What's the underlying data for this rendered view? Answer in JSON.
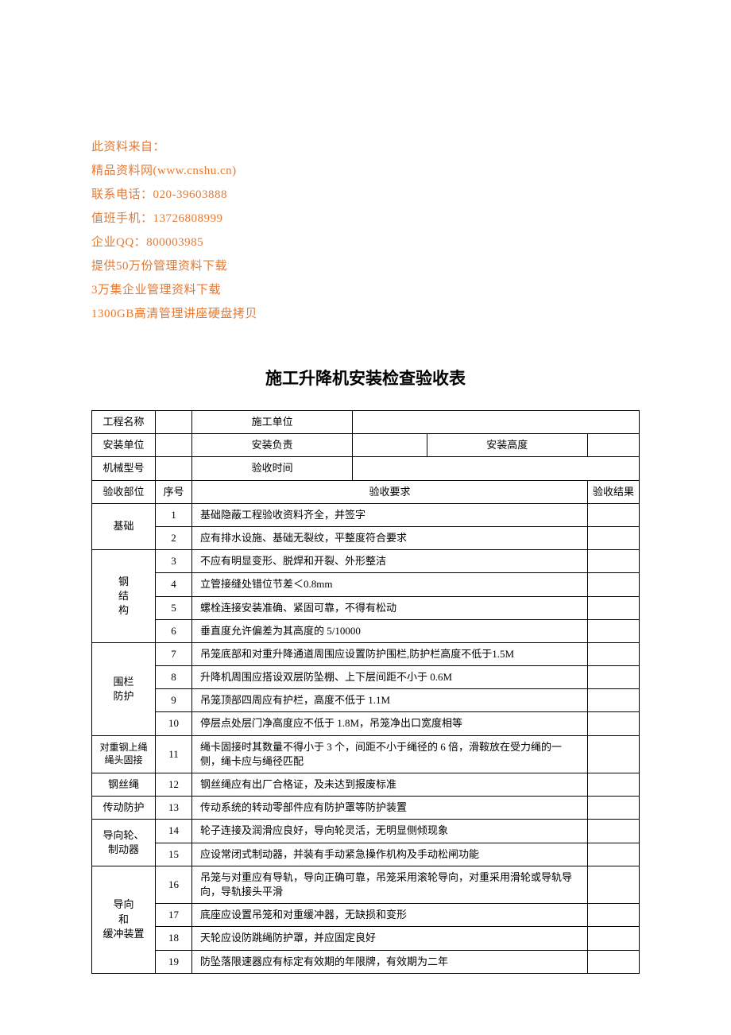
{
  "source_color": "#e47933",
  "source_lines": [
    "此资料来自：",
    "精品资料网(www.cnshu.cn)",
    "联系电话：020-39603888",
    "值班手机：13726808999",
    "企业QQ：800003985",
    "提供50万份管理资料下载",
    "3万集企业管理资料下载",
    "1300GB高清管理讲座硬盘拷贝"
  ],
  "title": "施工升降机安装检查验收表",
  "meta_labels": {
    "project_name": "工程名称",
    "construction_unit": "施工单位",
    "install_unit": "安装单位",
    "install_responsible": "安装负责",
    "install_height": "安装高度",
    "machine_model": "机械型号",
    "accept_time": "验收时间"
  },
  "header": {
    "accept_section": "验收部位",
    "seq_no": "序号",
    "requirements": "验收要求",
    "result": "验收结果"
  },
  "sections": [
    {
      "name": "基础",
      "rows": [
        {
          "no": "1",
          "req": "基础隐蔽工程验收资料齐全，并签字"
        },
        {
          "no": "2",
          "req": "应有排水设施、基础无裂纹，平整度符合要求"
        }
      ]
    },
    {
      "name": "钢\n结\n构",
      "rows": [
        {
          "no": "3",
          "req": "不应有明显变形、脱焊和开裂、外形整洁"
        },
        {
          "no": "4",
          "req": "立管接缝处错位节差＜0.8mm"
        },
        {
          "no": "5",
          "req": "螺栓连接安装准确、紧固可靠，不得有松动"
        },
        {
          "no": "6",
          "req": "垂直度允许偏差为其高度的 5/10000"
        }
      ]
    },
    {
      "name": "围栏\n防护",
      "rows": [
        {
          "no": "7",
          "req": "吊笼底部和对重升降通道周围应设置防护围栏,防护栏高度不低于1.5M"
        },
        {
          "no": "8",
          "req": "升降机周围应搭设双层防坠棚、上下层间距不小于 0.6M"
        },
        {
          "no": "9",
          "req": "吊笼顶部四周应有护栏，高度不低于 1.1M"
        },
        {
          "no": "10",
          "req": "停层点处层门净高度应不低于 1.8M，吊笼净出口宽度相等"
        }
      ]
    },
    {
      "name": "对重钢上绳\n绳头固接",
      "rows": [
        {
          "no": "11",
          "req": "绳卡固接时其数量不得小于 3 个，间距不小于绳径的 6 倍，滑鞍放在受力绳的一侧，绳卡应与绳径匹配"
        }
      ]
    },
    {
      "name": "钢丝绳",
      "rows": [
        {
          "no": "12",
          "req": "钢丝绳应有出厂合格证，及未达到报废标准"
        }
      ]
    },
    {
      "name": "传动防护",
      "rows": [
        {
          "no": "13",
          "req": "传动系统的转动零部件应有防护罩等防护装置"
        }
      ]
    },
    {
      "name": "导向轮、\n制动器",
      "rows": [
        {
          "no": "14",
          "req": "轮子连接及润滑应良好，导向轮灵活，无明显侧倾现象"
        },
        {
          "no": "15",
          "req": "应设常闭式制动器，并装有手动紧急操作机构及手动松闸功能"
        }
      ]
    },
    {
      "name": "导向\n和\n缓冲装置",
      "rows": [
        {
          "no": "16",
          "req": "吊笼与对重应有导轨，导向正确可靠，吊笼采用滚轮导向，对重采用滑轮或导轨导向，导轨接头平滑"
        },
        {
          "no": "17",
          "req": "底座应设置吊笼和对重缓冲器，无缺损和变形"
        },
        {
          "no": "18",
          "req": "天轮应设防跳绳防护罩，并应固定良好"
        },
        {
          "no": "19",
          "req": "防坠落限速器应有标定有效期的年限牌，有效期为二年"
        }
      ]
    }
  ]
}
